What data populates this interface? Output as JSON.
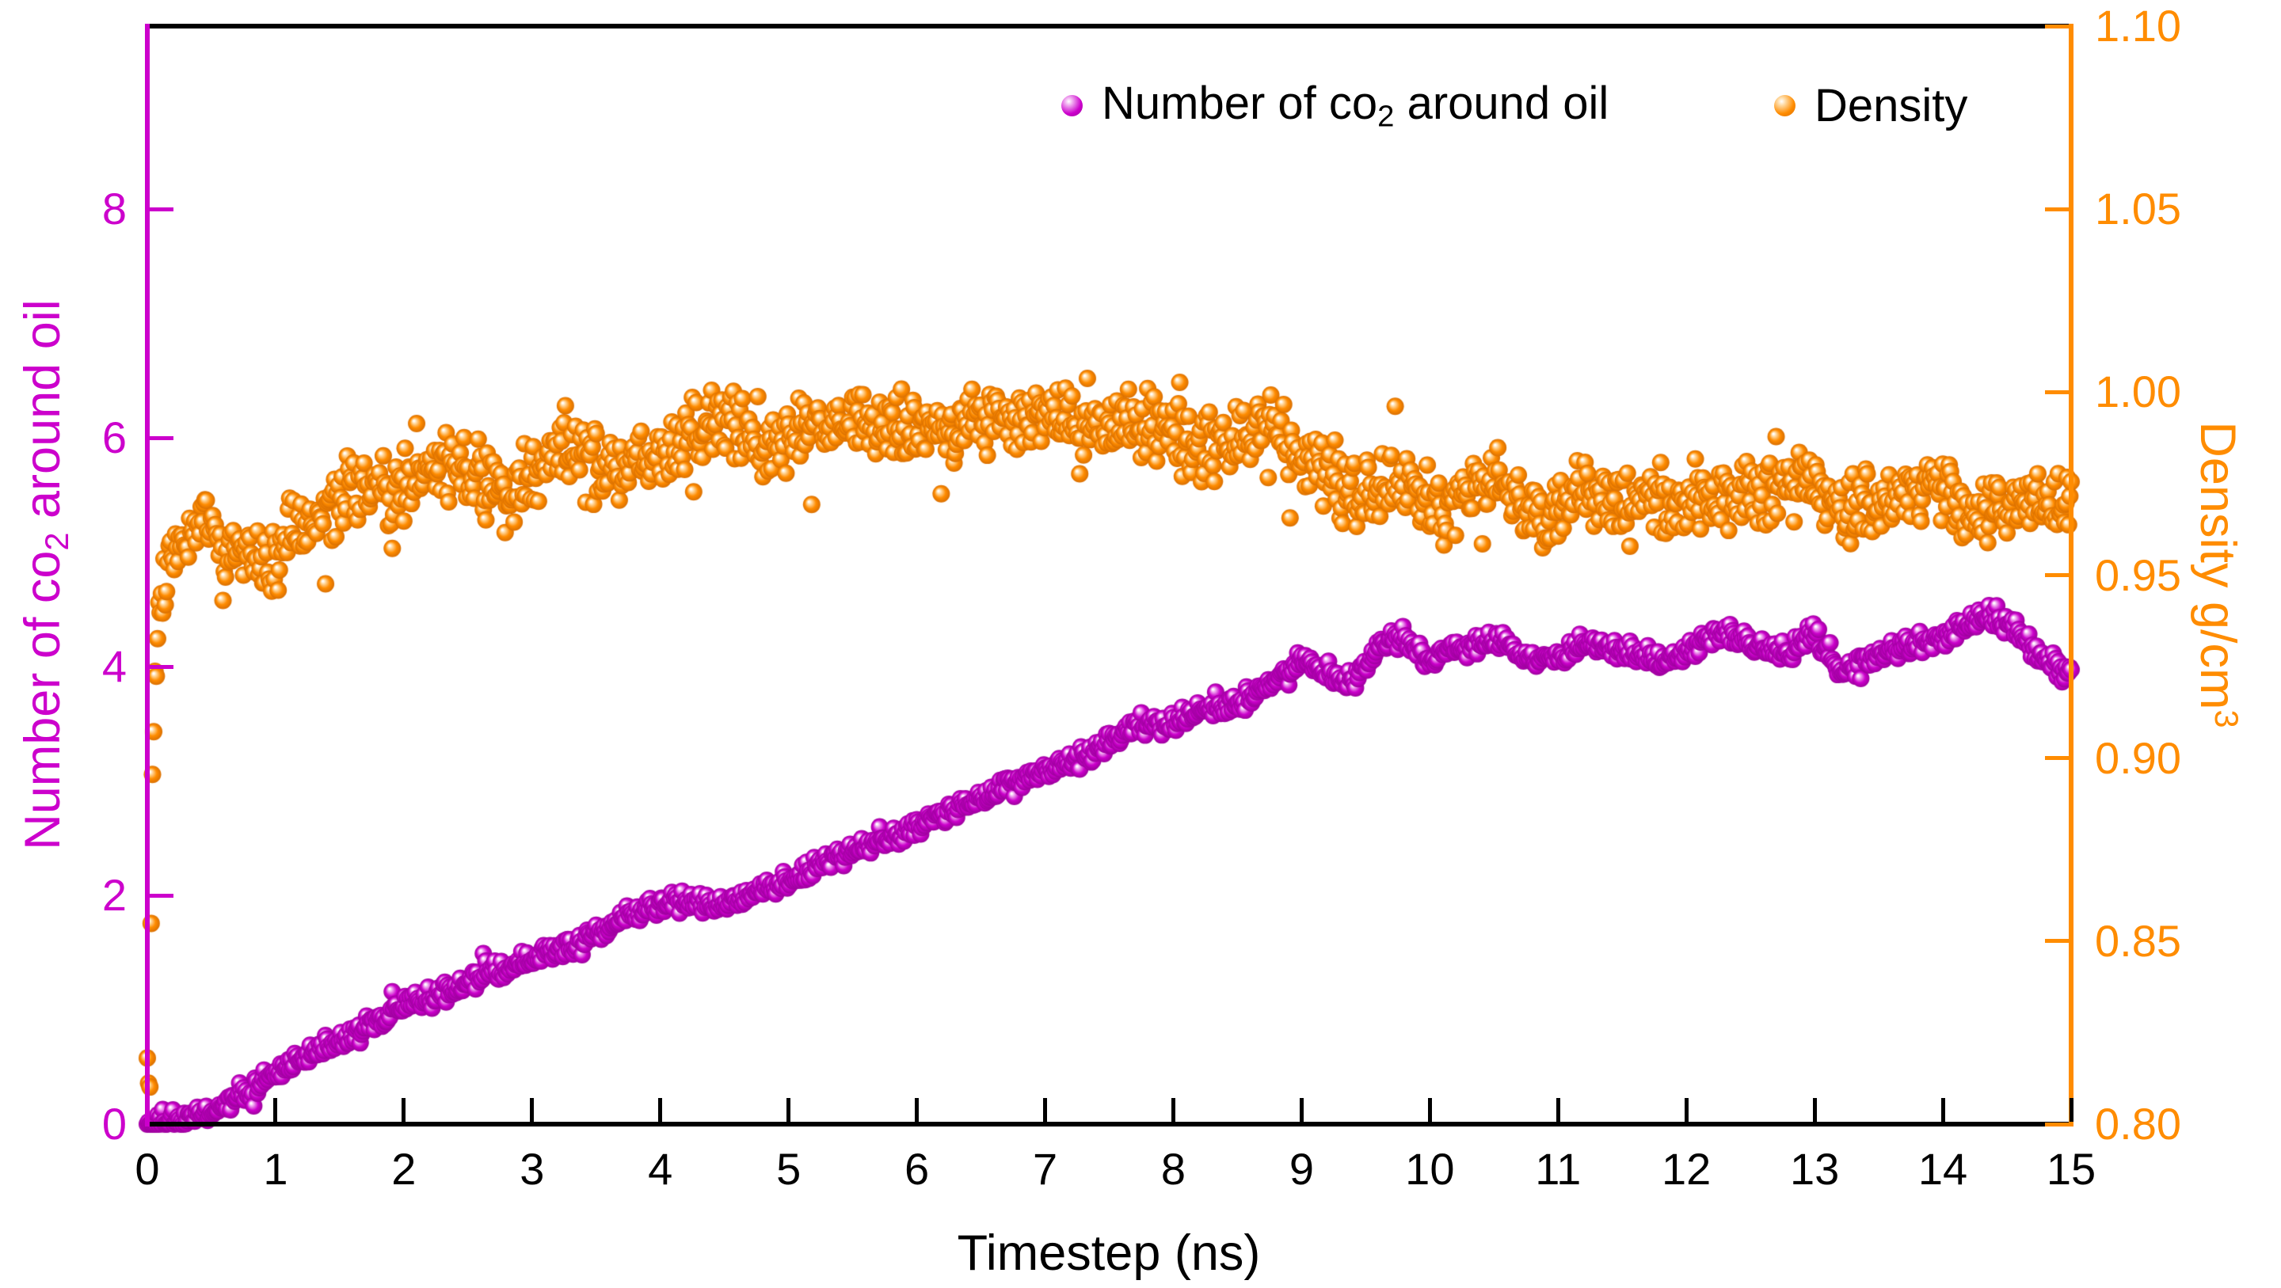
{
  "figure": {
    "x_axis_title": "Timestep (ns)",
    "left_axis_title": {
      "pre": "Number of co",
      "sub": "2",
      "post": " around oil"
    },
    "right_axis_title": {
      "pre": "Density g/cm",
      "sup": "3"
    },
    "legend": {
      "co2": {
        "pre": "Number of co",
        "sub": "2",
        "post": " around oil"
      },
      "density": {
        "label": "Density"
      }
    },
    "colors": {
      "magenta": "#cc00cc",
      "orange": "#ff8c00",
      "axis_black": "#000000"
    }
  },
  "chart_data": {
    "type": "scatter",
    "title": "",
    "xlabel": "Timestep (ns)",
    "xlim": [
      0,
      15
    ],
    "x_ticks": [
      0,
      1,
      2,
      3,
      4,
      5,
      6,
      7,
      8,
      9,
      10,
      11,
      12,
      13,
      14,
      15
    ],
    "grid": false,
    "legend_position": "top-center-inside",
    "left_axis": {
      "label": "Number of co2 around oil",
      "color": "#cc00cc",
      "range": [
        0,
        9.6
      ],
      "ticks": [
        0,
        2,
        4,
        6,
        8
      ]
    },
    "right_axis": {
      "label": "Density g/cm3",
      "color": "#ff8c00",
      "range": [
        0.8,
        1.1
      ],
      "ticks": [
        0.8,
        0.85,
        0.9,
        0.95,
        1.0,
        1.05,
        1.1
      ]
    },
    "series": [
      {
        "name": "Number of co2 around oil",
        "axis": "left",
        "marker": "sphere",
        "color": "#cc00cc",
        "sample_interval_ns": 0.01,
        "noise_sd": 0.045,
        "outlier_prob": 0.006,
        "outlier_mag": 0.14,
        "seed": 42,
        "anchors": [
          [
            0,
            0.0
          ],
          [
            0.2,
            0.03
          ],
          [
            0.5,
            0.12
          ],
          [
            0.8,
            0.3
          ],
          [
            1.0,
            0.45
          ],
          [
            1.2,
            0.58
          ],
          [
            1.5,
            0.72
          ],
          [
            1.8,
            0.9
          ],
          [
            2.0,
            1.05
          ],
          [
            2.3,
            1.15
          ],
          [
            2.6,
            1.28
          ],
          [
            3.0,
            1.44
          ],
          [
            3.3,
            1.55
          ],
          [
            3.6,
            1.72
          ],
          [
            3.9,
            1.9
          ],
          [
            4.1,
            1.95
          ],
          [
            4.4,
            1.9
          ],
          [
            4.7,
            2.0
          ],
          [
            5.0,
            2.1
          ],
          [
            5.2,
            2.25
          ],
          [
            5.5,
            2.4
          ],
          [
            5.8,
            2.5
          ],
          [
            6.0,
            2.6
          ],
          [
            6.3,
            2.75
          ],
          [
            6.6,
            2.9
          ],
          [
            6.9,
            3.05
          ],
          [
            7.2,
            3.15
          ],
          [
            7.5,
            3.35
          ],
          [
            7.7,
            3.5
          ],
          [
            8.0,
            3.5
          ],
          [
            8.2,
            3.6
          ],
          [
            8.5,
            3.65
          ],
          [
            8.8,
            3.9
          ],
          [
            9.0,
            4.05
          ],
          [
            9.2,
            3.95
          ],
          [
            9.4,
            3.85
          ],
          [
            9.6,
            4.2
          ],
          [
            9.8,
            4.25
          ],
          [
            10.0,
            4.05
          ],
          [
            10.2,
            4.15
          ],
          [
            10.5,
            4.25
          ],
          [
            10.7,
            4.1
          ],
          [
            11.0,
            4.05
          ],
          [
            11.2,
            4.2
          ],
          [
            11.5,
            4.15
          ],
          [
            11.8,
            4.05
          ],
          [
            12.0,
            4.15
          ],
          [
            12.3,
            4.3
          ],
          [
            12.5,
            4.2
          ],
          [
            12.8,
            4.1
          ],
          [
            13.0,
            4.3
          ],
          [
            13.2,
            3.95
          ],
          [
            13.5,
            4.1
          ],
          [
            13.8,
            4.2
          ],
          [
            14.0,
            4.25
          ],
          [
            14.3,
            4.45
          ],
          [
            14.5,
            4.4
          ],
          [
            14.7,
            4.15
          ],
          [
            14.9,
            4.0
          ],
          [
            15,
            3.95
          ]
        ]
      },
      {
        "name": "Density",
        "axis": "right",
        "marker": "sphere",
        "color": "#ff8c00",
        "sample_interval_ns": 0.01,
        "noise_sd": 0.0045,
        "outlier_prob": 0.015,
        "outlier_mag": 0.013,
        "seed": 1337,
        "anchors": [
          [
            0.02,
            0.815
          ],
          [
            0.04,
            0.9
          ],
          [
            0.07,
            0.93
          ],
          [
            0.1,
            0.94
          ],
          [
            0.15,
            0.95
          ],
          [
            0.2,
            0.955
          ],
          [
            0.3,
            0.962
          ],
          [
            0.4,
            0.968
          ],
          [
            0.5,
            0.963
          ],
          [
            0.6,
            0.955
          ],
          [
            0.7,
            0.96
          ],
          [
            0.8,
            0.958
          ],
          [
            0.9,
            0.952
          ],
          [
            1.0,
            0.955
          ],
          [
            1.1,
            0.962
          ],
          [
            1.3,
            0.965
          ],
          [
            1.5,
            0.97
          ],
          [
            1.7,
            0.975
          ],
          [
            1.9,
            0.972
          ],
          [
            2.1,
            0.977
          ],
          [
            2.3,
            0.982
          ],
          [
            2.5,
            0.978
          ],
          [
            2.7,
            0.975
          ],
          [
            2.9,
            0.972
          ],
          [
            3.1,
            0.98
          ],
          [
            3.3,
            0.984
          ],
          [
            3.5,
            0.982
          ],
          [
            3.7,
            0.978
          ],
          [
            3.9,
            0.983
          ],
          [
            4.1,
            0.985
          ],
          [
            4.3,
            0.988
          ],
          [
            4.5,
            0.992
          ],
          [
            4.7,
            0.988
          ],
          [
            4.9,
            0.985
          ],
          [
            5.1,
            0.99
          ],
          [
            5.3,
            0.988
          ],
          [
            5.5,
            0.992
          ],
          [
            5.7,
            0.99
          ],
          [
            5.9,
            0.988
          ],
          [
            6.1,
            0.992
          ],
          [
            6.3,
            0.99
          ],
          [
            6.5,
            0.994
          ],
          [
            6.7,
            0.99
          ],
          [
            6.9,
            0.992
          ],
          [
            7.1,
            0.994
          ],
          [
            7.3,
            0.99
          ],
          [
            7.5,
            0.988
          ],
          [
            7.7,
            0.992
          ],
          [
            7.9,
            0.988
          ],
          [
            8.1,
            0.99
          ],
          [
            8.3,
            0.985
          ],
          [
            8.5,
            0.987
          ],
          [
            8.7,
            0.99
          ],
          [
            8.9,
            0.985
          ],
          [
            9.1,
            0.98
          ],
          [
            9.3,
            0.975
          ],
          [
            9.5,
            0.972
          ],
          [
            9.7,
            0.976
          ],
          [
            9.9,
            0.972
          ],
          [
            10.1,
            0.968
          ],
          [
            10.3,
            0.972
          ],
          [
            10.5,
            0.975
          ],
          [
            10.7,
            0.968
          ],
          [
            10.9,
            0.965
          ],
          [
            11.1,
            0.97
          ],
          [
            11.3,
            0.973
          ],
          [
            11.5,
            0.97
          ],
          [
            11.7,
            0.972
          ],
          [
            11.9,
            0.968
          ],
          [
            12.1,
            0.972
          ],
          [
            12.3,
            0.975
          ],
          [
            12.5,
            0.972
          ],
          [
            12.7,
            0.975
          ],
          [
            12.9,
            0.977
          ],
          [
            13.1,
            0.972
          ],
          [
            13.3,
            0.97
          ],
          [
            13.5,
            0.966
          ],
          [
            13.7,
            0.972
          ],
          [
            13.9,
            0.975
          ],
          [
            14.1,
            0.972
          ],
          [
            14.3,
            0.965
          ],
          [
            14.5,
            0.97
          ],
          [
            14.7,
            0.972
          ],
          [
            14.9,
            0.968
          ],
          [
            15,
            0.97
          ]
        ]
      }
    ]
  }
}
